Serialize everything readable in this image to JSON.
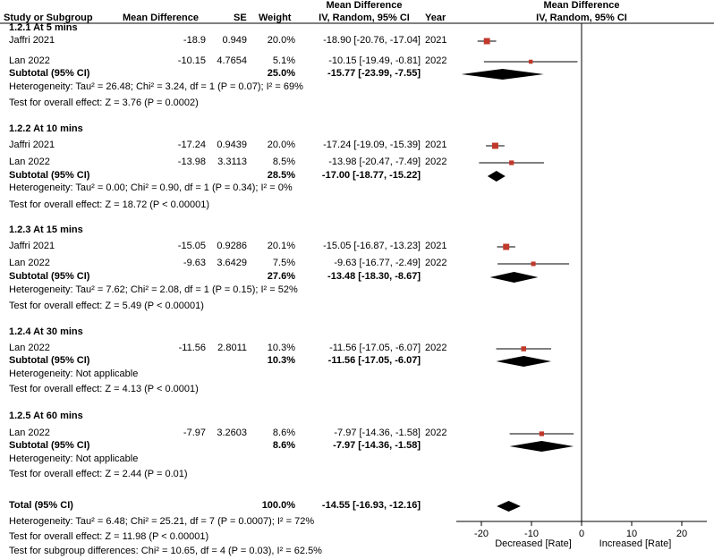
{
  "headers": {
    "study": "Study or Subgroup",
    "md": "Mean Difference",
    "se": "SE",
    "weight": "Weight",
    "ci_top": "Mean Difference",
    "ci_bottom": "IV, Random, 95% CI",
    "year": "Year",
    "plot_top": "Mean Difference",
    "plot_bottom": "IV, Random, 95% CI"
  },
  "groups": [
    {
      "title": "1.2.1 At 5 mins",
      "studies": [
        {
          "name": "Jaffri 2021",
          "md": "-18.9",
          "se": "0.949",
          "weight": "20.0%",
          "ci": "-18.90 [-20.76, -17.04]",
          "year": "2021"
        },
        {
          "name": "Lan 2022",
          "md": "-10.15",
          "se": "4.7654",
          "weight": "5.1%",
          "ci": "-10.15 [-19.49, -0.81]",
          "year": "2022"
        }
      ],
      "subtotal": {
        "label": "Subtotal (95% CI)",
        "weight": "25.0%",
        "ci": "-15.77 [-23.99, -7.55]"
      },
      "heterogeneity": "Heterogeneity: Tau² = 26.48; Chi² = 3.24, df = 1 (P = 0.07); I² = 69%",
      "overall": "Test for overall effect: Z = 3.76 (P = 0.0002)"
    },
    {
      "title": "1.2.2 At 10 mins",
      "studies": [
        {
          "name": "Jaffri 2021",
          "md": "-17.24",
          "se": "0.9439",
          "weight": "20.0%",
          "ci": "-17.24 [-19.09, -15.39]",
          "year": "2021"
        },
        {
          "name": "Lan 2022",
          "md": "-13.98",
          "se": "3.3113",
          "weight": "8.5%",
          "ci": "-13.98 [-20.47, -7.49]",
          "year": "2022"
        }
      ],
      "subtotal": {
        "label": "Subtotal (95% CI)",
        "weight": "28.5%",
        "ci": "-17.00 [-18.77, -15.22]"
      },
      "heterogeneity": "Heterogeneity: Tau² = 0.00; Chi² = 0.90, df = 1 (P = 0.34); I² = 0%",
      "overall": "Test for overall effect: Z = 18.72 (P < 0.00001)"
    },
    {
      "title": "1.2.3 At 15 mins",
      "studies": [
        {
          "name": "Jaffri 2021",
          "md": "-15.05",
          "se": "0.9286",
          "weight": "20.1%",
          "ci": "-15.05 [-16.87, -13.23]",
          "year": "2021"
        },
        {
          "name": "Lan 2022",
          "md": "-9.63",
          "se": "3.6429",
          "weight": "7.5%",
          "ci": "-9.63 [-16.77, -2.49]",
          "year": "2022"
        }
      ],
      "subtotal": {
        "label": "Subtotal (95% CI)",
        "weight": "27.6%",
        "ci": "-13.48 [-18.30, -8.67]"
      },
      "heterogeneity": "Heterogeneity: Tau² = 7.62; Chi² = 2.08, df = 1 (P = 0.15); I² = 52%",
      "overall": "Test for overall effect: Z = 5.49 (P < 0.00001)"
    },
    {
      "title": "1.2.4 At 30 mins",
      "studies": [
        {
          "name": "Lan 2022",
          "md": "-11.56",
          "se": "2.8011",
          "weight": "10.3%",
          "ci": "-11.56 [-17.05, -6.07]",
          "year": "2022"
        }
      ],
      "subtotal": {
        "label": "Subtotal (95% CI)",
        "weight": "10.3%",
        "ci": "-11.56 [-17.05, -6.07]"
      },
      "heterogeneity": "Heterogeneity: Not applicable",
      "overall": "Test for overall effect: Z = 4.13 (P < 0.0001)"
    },
    {
      "title": "1.2.5 At 60 mins",
      "studies": [
        {
          "name": "Lan 2022",
          "md": "-7.97",
          "se": "3.2603",
          "weight": "8.6%",
          "ci": "-7.97 [-14.36, -1.58]",
          "year": "2022"
        }
      ],
      "subtotal": {
        "label": "Subtotal (95% CI)",
        "weight": "8.6%",
        "ci": "-7.97 [-14.36, -1.58]"
      },
      "heterogeneity": "Heterogeneity: Not applicable",
      "overall": "Test for overall effect: Z = 2.44 (P = 0.01)"
    }
  ],
  "total": {
    "label": "Total (95% CI)",
    "weight": "100.0%",
    "ci": "-14.55 [-16.93, -12.16]",
    "heterogeneity": "Heterogeneity: Tau² = 6.48; Chi² = 25.21, df = 7 (P = 0.0007); I² = 72%",
    "overall": "Test for overall effect: Z = 11.98 (P < 0.00001)",
    "subgroup": "Test for subgroup differences: Chi² = 10.65, df = 4 (P = 0.03), I² = 62.5%"
  },
  "chart_data": {
    "type": "forest",
    "title": "Mean Difference IV, Random, 95% CI",
    "xlim": [
      -25,
      25
    ],
    "ticks": [
      -20,
      -10,
      0,
      10,
      20
    ],
    "xlabel_left": "Decreased [Rate]",
    "xlabel_right": "Increased [Rate]",
    "study_points": [
      {
        "group": 0,
        "est": -18.9,
        "lo": -20.76,
        "hi": -17.04,
        "weight": 20.0
      },
      {
        "group": 0,
        "est": -10.15,
        "lo": -19.49,
        "hi": -0.81,
        "weight": 5.1
      },
      {
        "group": 1,
        "est": -17.24,
        "lo": -19.09,
        "hi": -15.39,
        "weight": 20.0
      },
      {
        "group": 1,
        "est": -13.98,
        "lo": -20.47,
        "hi": -7.49,
        "weight": 8.5
      },
      {
        "group": 2,
        "est": -15.05,
        "lo": -16.87,
        "hi": -13.23,
        "weight": 20.1
      },
      {
        "group": 2,
        "est": -9.63,
        "lo": -16.77,
        "hi": -2.49,
        "weight": 7.5
      },
      {
        "group": 3,
        "est": -11.56,
        "lo": -17.05,
        "hi": -6.07,
        "weight": 10.3
      },
      {
        "group": 4,
        "est": -7.97,
        "lo": -14.36,
        "hi": -1.58,
        "weight": 8.6
      }
    ],
    "subtotals": [
      {
        "est": -15.77,
        "lo": -23.99,
        "hi": -7.55
      },
      {
        "est": -17.0,
        "lo": -18.77,
        "hi": -15.22
      },
      {
        "est": -13.48,
        "lo": -18.3,
        "hi": -8.67
      },
      {
        "est": -11.56,
        "lo": -17.05,
        "hi": -6.07
      },
      {
        "est": -7.97,
        "lo": -14.36,
        "hi": -1.58
      }
    ],
    "total": {
      "est": -14.55,
      "lo": -16.93,
      "hi": -12.16
    },
    "colors": {
      "square": "#c0392b",
      "line": "#000000",
      "diamond": "#000000"
    }
  }
}
